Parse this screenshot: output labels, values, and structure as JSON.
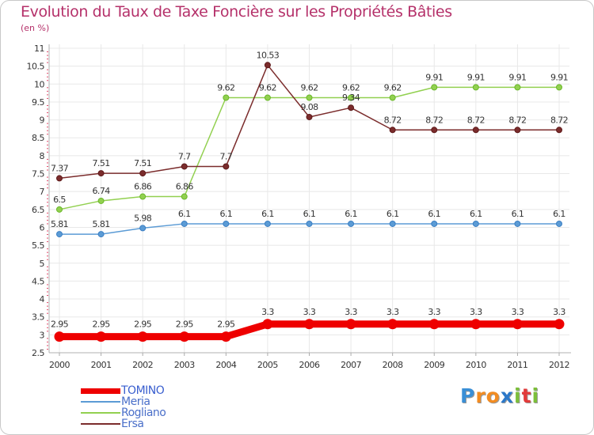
{
  "title": "Evolution du Taux de Taxe Foncière sur les Propriétés Bâties",
  "subtitle": "(en %)",
  "logo": {
    "letters": [
      "P",
      "r",
      "o",
      "x",
      "i",
      "t",
      "i"
    ],
    "colors": [
      "#3a8fd6",
      "#f28c22",
      "#f28c22",
      "#2b78c9",
      "#7cbf3a",
      "#e23a3a",
      "#7cbf3a"
    ]
  },
  "chart_data": {
    "type": "line",
    "title": "Evolution du Taux de Taxe Foncière sur les Propriétés Bâties",
    "ylabel": "(en %)",
    "xlabel": "",
    "x": [
      "2000",
      "2001",
      "2002",
      "2003",
      "2004",
      "2005",
      "2006",
      "2007",
      "2008",
      "2009",
      "2010",
      "2011",
      "2012"
    ],
    "ylim": [
      2.5,
      11
    ],
    "yticks": [
      "2.5",
      "3",
      "3.5",
      "4",
      "4.5",
      "5",
      "5.5",
      "6",
      "6.5",
      "7",
      "7.5",
      "8",
      "8.5",
      "9",
      "9.5",
      "10",
      "10.5",
      "11"
    ],
    "grid": true,
    "legend_position": "bottom-left",
    "series": [
      {
        "name": "TOMINO",
        "color": "#ee0000",
        "emphasis": true,
        "values": [
          2.95,
          2.95,
          2.95,
          2.95,
          2.95,
          3.3,
          3.3,
          3.3,
          3.3,
          3.3,
          3.3,
          3.3,
          3.3
        ],
        "labels": [
          "2.95",
          "2.95",
          "2.95",
          "2.95",
          "2.95",
          "3.3",
          "3.3",
          "3.3",
          "3.3",
          "3.3",
          "3.3",
          "3.3",
          "3.3"
        ]
      },
      {
        "name": "Meria",
        "color": "#5b9bd5",
        "marker": "#3b7fc4",
        "values": [
          5.81,
          5.81,
          5.98,
          6.1,
          6.1,
          6.1,
          6.1,
          6.1,
          6.1,
          6.1,
          6.1,
          6.1,
          6.1
        ],
        "labels": [
          "5.81",
          "5.81",
          "5.98",
          "6.1",
          "6.1",
          "6.1",
          "6.1",
          "6.1",
          "6.1",
          "6.1",
          "6.1",
          "6.1",
          "6.1"
        ]
      },
      {
        "name": "Rogliano",
        "color": "#92d050",
        "marker": "#6ab82a",
        "values": [
          6.5,
          6.74,
          6.86,
          6.86,
          9.62,
          9.62,
          9.62,
          9.62,
          9.62,
          9.91,
          9.91,
          9.91,
          9.91
        ],
        "labels": [
          "6.5",
          "6.74",
          "6.86",
          "6.86",
          "9.62",
          "9.62",
          "9.62",
          "9.62",
          "9.62",
          "9.91",
          "9.91",
          "9.91",
          "9.91"
        ]
      },
      {
        "name": "Ersa",
        "color": "#7b2c2c",
        "marker": "#5e1a1a",
        "values": [
          7.37,
          7.51,
          7.51,
          7.7,
          7.7,
          10.53,
          9.08,
          9.34,
          8.72,
          8.72,
          8.72,
          8.72,
          8.72
        ],
        "labels": [
          "7.37",
          "7.51",
          "7.51",
          "7.7",
          "7.7",
          "10.53",
          "9.08",
          "9.34",
          "8.72",
          "8.72",
          "8.72",
          "8.72",
          "8.72"
        ]
      }
    ]
  }
}
